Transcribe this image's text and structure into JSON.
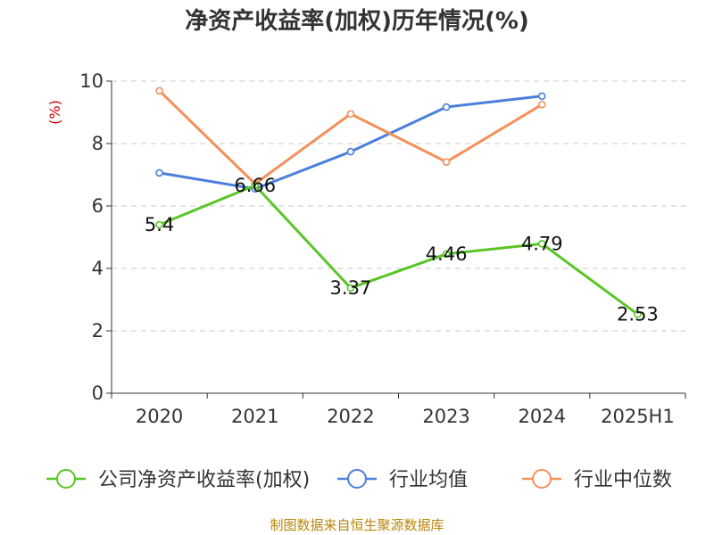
{
  "chart_data": {
    "type": "line",
    "title": "净资产收益率(加权)历年情况(%)",
    "ylabel": "(%)",
    "xlabel": "",
    "categories": [
      "2020",
      "2021",
      "2022",
      "2023",
      "2024",
      "2025H1"
    ],
    "ylim": [
      0,
      10
    ],
    "yticks": [
      "0",
      "2",
      "4",
      "6",
      "8",
      "10"
    ],
    "grid": true,
    "legend_position": "bottom",
    "series": [
      {
        "name": "公司净资产收益率(加权)",
        "color": "#5ac528",
        "values": [
          5.4,
          6.66,
          3.37,
          4.46,
          4.79,
          2.53
        ],
        "labels": [
          "5.4",
          "6.66",
          "3.37",
          "4.46",
          "4.79",
          "2.53"
        ]
      },
      {
        "name": "行业均值",
        "color": "#4a7fdb",
        "values": [
          7.06,
          6.55,
          7.74,
          9.17,
          9.52,
          null
        ]
      },
      {
        "name": "行业中位数",
        "color": "#f5905a",
        "values": [
          9.69,
          6.71,
          8.95,
          7.41,
          9.25,
          null
        ]
      }
    ]
  },
  "source": "制图数据来自恒生聚源数据库"
}
